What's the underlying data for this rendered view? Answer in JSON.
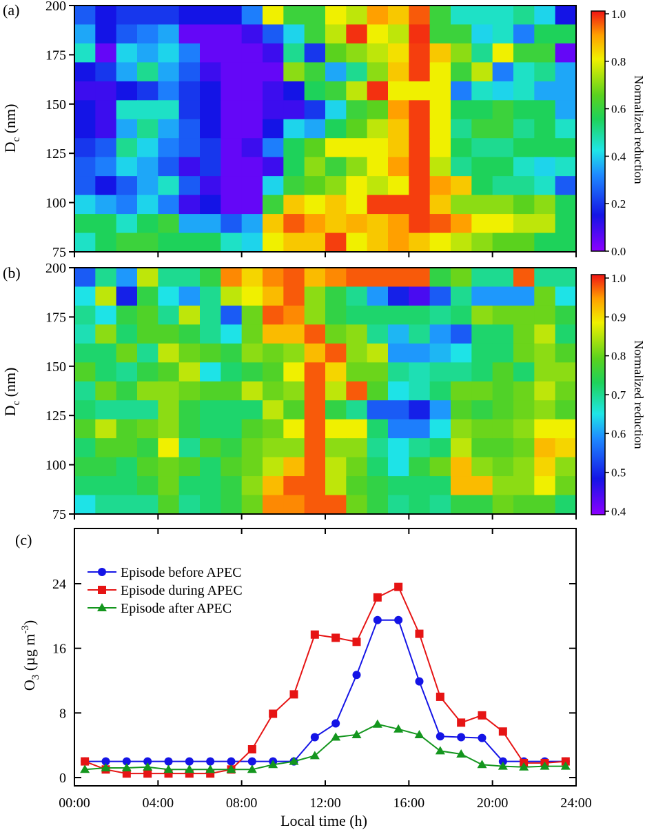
{
  "figure": {
    "panels": [
      {
        "label": "(a)",
        "ylabel_main": "D",
        "ylabel_sub": "c",
        "ylabel_unit": " (nm)",
        "colorbar_title": "Normalized reduction"
      },
      {
        "label": "(b)",
        "ylabel_main": "D",
        "ylabel_sub": "c",
        "ylabel_unit": " (nm)",
        "colorbar_title": "Normalized reduction"
      },
      {
        "label": "(c)",
        "ylabel_main": "O",
        "ylabel_sub": "3",
        "ylabel_unit": " (µg m",
        "ylabel_sup": "-3",
        "ylabel_close": ")",
        "xlabel": "Local time (h)"
      }
    ]
  },
  "chart_data": [
    {
      "type": "heatmap",
      "label": "(a)",
      "colormap": "rainbow (purple→blue→cyan→green→yellow→red)",
      "colorbar_range": [
        0.0,
        1.0
      ],
      "colorbar_ticks": [
        "0.0",
        "0.2",
        "0.4",
        "0.6",
        "0.8",
        "1.0"
      ],
      "colorbar_title": "Normalized reduction",
      "ylabel": "Dc (nm)",
      "y_ticks": [
        "75",
        "100",
        "125",
        "150",
        "175",
        "200"
      ],
      "ylim": [
        75,
        200
      ],
      "x_hours": [
        0,
        1,
        2,
        3,
        4,
        5,
        6,
        7,
        8,
        9,
        10,
        11,
        12,
        13,
        14,
        15,
        16,
        17,
        18,
        19,
        20,
        21,
        22,
        23
      ],
      "y_bins_nm": [
        80,
        90,
        100,
        110,
        120,
        130,
        140,
        150,
        160,
        170,
        180,
        190,
        200
      ],
      "values_top_to_bottom": [
        [
          0.25,
          0.15,
          0.2,
          0.2,
          0.2,
          0.15,
          0.15,
          0.15,
          0.3,
          0.8,
          0.6,
          0.6,
          0.8,
          0.75,
          0.9,
          0.85,
          0.95,
          0.6,
          0.45,
          0.45,
          0.45,
          0.5,
          0.4,
          0.15
        ],
        [
          0.35,
          0.15,
          0.25,
          0.3,
          0.35,
          0.05,
          0.05,
          0.05,
          0.1,
          0.25,
          0.4,
          0.6,
          0.75,
          0.98,
          0.8,
          0.75,
          0.98,
          0.6,
          0.6,
          0.4,
          0.45,
          0.3,
          0.55,
          0.55
        ],
        [
          0.45,
          0.05,
          0.4,
          0.35,
          0.4,
          0.3,
          0.05,
          0.05,
          0.05,
          0.1,
          0.5,
          0.2,
          0.65,
          0.7,
          0.75,
          0.82,
          0.97,
          0.85,
          0.7,
          0.5,
          0.8,
          0.6,
          0.6,
          0.05
        ],
        [
          0.15,
          0.2,
          0.35,
          0.5,
          0.35,
          0.25,
          0.1,
          0.05,
          0.05,
          0.05,
          0.7,
          0.6,
          0.35,
          0.5,
          0.7,
          0.85,
          0.97,
          0.8,
          0.6,
          0.75,
          0.3,
          0.45,
          0.5,
          0.35
        ],
        [
          0.1,
          0.1,
          0.15,
          0.2,
          0.3,
          0.2,
          0.15,
          0.05,
          0.05,
          0.1,
          0.15,
          0.55,
          0.6,
          0.75,
          0.98,
          0.8,
          0.8,
          0.8,
          0.3,
          0.45,
          0.4,
          0.45,
          0.35,
          0.35
        ],
        [
          0.15,
          0.1,
          0.45,
          0.45,
          0.45,
          0.2,
          0.15,
          0.05,
          0.05,
          0.1,
          0.1,
          0.2,
          0.4,
          0.6,
          0.65,
          0.9,
          0.97,
          0.8,
          0.55,
          0.55,
          0.6,
          0.55,
          0.55,
          0.35
        ],
        [
          0.15,
          0.1,
          0.35,
          0.5,
          0.35,
          0.25,
          0.15,
          0.05,
          0.05,
          0.15,
          0.4,
          0.35,
          0.55,
          0.65,
          0.75,
          0.85,
          0.97,
          0.8,
          0.5,
          0.6,
          0.6,
          0.5,
          0.55,
          0.45
        ],
        [
          0.2,
          0.25,
          0.5,
          0.4,
          0.3,
          0.25,
          0.2,
          0.05,
          0.1,
          0.3,
          0.55,
          0.65,
          0.8,
          0.8,
          0.8,
          0.85,
          0.97,
          0.8,
          0.55,
          0.5,
          0.5,
          0.55,
          0.55,
          0.55
        ],
        [
          0.25,
          0.3,
          0.4,
          0.35,
          0.25,
          0.1,
          0.2,
          0.05,
          0.05,
          0.1,
          0.55,
          0.7,
          0.6,
          0.7,
          0.8,
          0.9,
          0.97,
          0.75,
          0.5,
          0.55,
          0.55,
          0.45,
          0.4,
          0.45
        ],
        [
          0.25,
          0.15,
          0.25,
          0.35,
          0.45,
          0.25,
          0.1,
          0.05,
          0.05,
          0.4,
          0.6,
          0.65,
          0.7,
          0.8,
          0.75,
          0.8,
          0.97,
          0.9,
          0.85,
          0.55,
          0.5,
          0.5,
          0.45,
          0.25
        ],
        [
          0.4,
          0.35,
          0.3,
          0.4,
          0.3,
          0.1,
          0.15,
          0.05,
          0.05,
          0.6,
          0.85,
          0.8,
          0.85,
          0.8,
          0.97,
          0.97,
          0.97,
          0.85,
          0.7,
          0.7,
          0.7,
          0.65,
          0.7,
          0.55
        ],
        [
          0.55,
          0.55,
          0.45,
          0.55,
          0.6,
          0.35,
          0.35,
          0.25,
          0.35,
          0.85,
          0.95,
          0.9,
          0.85,
          0.88,
          0.85,
          0.9,
          0.97,
          0.95,
          0.9,
          0.8,
          0.8,
          0.75,
          0.75,
          0.55
        ],
        [
          0.45,
          0.55,
          0.6,
          0.6,
          0.55,
          0.55,
          0.55,
          0.45,
          0.4,
          0.8,
          0.85,
          0.85,
          0.97,
          0.8,
          0.85,
          0.9,
          0.85,
          0.8,
          0.75,
          0.7,
          0.65,
          0.65,
          0.55,
          0.55
        ]
      ]
    },
    {
      "type": "heatmap",
      "label": "(b)",
      "colormap": "rainbow (purple→blue→cyan→green→yellow→red)",
      "colorbar_range": [
        0.4,
        1.0
      ],
      "colorbar_ticks": [
        "0.4",
        "0.5",
        "0.6",
        "0.7",
        "0.8",
        "0.9",
        "1.0"
      ],
      "colorbar_title": "Normalized reduction",
      "ylabel": "Dc (nm)",
      "y_ticks": [
        "75",
        "100",
        "125",
        "150",
        "175",
        "200"
      ],
      "ylim": [
        75,
        200
      ],
      "x_hours": [
        0,
        1,
        2,
        3,
        4,
        5,
        6,
        7,
        8,
        9,
        10,
        11,
        12,
        13,
        14,
        15,
        16,
        17,
        18,
        19,
        20,
        21,
        22,
        23
      ],
      "y_bins_nm": [
        80,
        90,
        100,
        110,
        120,
        130,
        140,
        150,
        160,
        170,
        180,
        190,
        200
      ],
      "values_top_to_bottom": [
        [
          0.55,
          0.7,
          0.6,
          0.85,
          0.7,
          0.7,
          0.75,
          0.95,
          0.9,
          0.95,
          0.97,
          0.92,
          0.95,
          0.97,
          0.97,
          0.97,
          0.97,
          0.75,
          0.8,
          0.7,
          0.7,
          0.97,
          0.7,
          0.7
        ],
        [
          0.65,
          0.85,
          0.5,
          0.75,
          0.65,
          0.6,
          0.7,
          0.85,
          0.88,
          0.92,
          0.97,
          0.82,
          0.75,
          0.7,
          0.6,
          0.5,
          0.45,
          0.55,
          0.7,
          0.6,
          0.6,
          0.6,
          0.8,
          0.65
        ],
        [
          0.7,
          0.65,
          0.75,
          0.78,
          0.7,
          0.85,
          0.7,
          0.55,
          0.8,
          0.97,
          0.95,
          0.82,
          0.75,
          0.72,
          0.72,
          0.72,
          0.72,
          0.7,
          0.72,
          0.82,
          0.8,
          0.8,
          0.8,
          0.75
        ],
        [
          0.68,
          0.82,
          0.72,
          0.78,
          0.78,
          0.75,
          0.7,
          0.65,
          0.8,
          0.92,
          0.92,
          0.97,
          0.8,
          0.82,
          0.7,
          0.62,
          0.7,
          0.6,
          0.55,
          0.72,
          0.72,
          0.8,
          0.85,
          0.72
        ],
        [
          0.72,
          0.72,
          0.8,
          0.7,
          0.85,
          0.8,
          0.78,
          0.75,
          0.82,
          0.8,
          0.82,
          0.92,
          0.97,
          0.82,
          0.85,
          0.6,
          0.6,
          0.62,
          0.65,
          0.72,
          0.72,
          0.8,
          0.82,
          0.78
        ],
        [
          0.78,
          0.72,
          0.7,
          0.75,
          0.78,
          0.85,
          0.65,
          0.72,
          0.75,
          0.78,
          0.88,
          0.97,
          0.9,
          0.8,
          0.8,
          0.7,
          0.68,
          0.7,
          0.7,
          0.72,
          0.78,
          0.72,
          0.82,
          0.82
        ],
        [
          0.7,
          0.8,
          0.75,
          0.82,
          0.82,
          0.8,
          0.78,
          0.78,
          0.85,
          0.8,
          0.82,
          0.97,
          0.85,
          0.97,
          0.78,
          0.65,
          0.68,
          0.72,
          0.8,
          0.8,
          0.78,
          0.8,
          0.85,
          0.8
        ],
        [
          0.72,
          0.7,
          0.7,
          0.7,
          0.82,
          0.75,
          0.72,
          0.72,
          0.72,
          0.85,
          0.78,
          0.97,
          0.75,
          0.7,
          0.55,
          0.55,
          0.5,
          0.6,
          0.78,
          0.75,
          0.78,
          0.8,
          0.82,
          0.78
        ],
        [
          0.78,
          0.85,
          0.78,
          0.8,
          0.82,
          0.75,
          0.72,
          0.72,
          0.78,
          0.8,
          0.88,
          0.97,
          0.88,
          0.88,
          0.72,
          0.58,
          0.58,
          0.65,
          0.82,
          0.8,
          0.8,
          0.82,
          0.88,
          0.88
        ],
        [
          0.72,
          0.78,
          0.78,
          0.75,
          0.88,
          0.7,
          0.78,
          0.75,
          0.8,
          0.82,
          0.82,
          0.97,
          0.82,
          0.82,
          0.7,
          0.65,
          0.7,
          0.72,
          0.85,
          0.78,
          0.78,
          0.8,
          0.92,
          0.9
        ],
        [
          0.75,
          0.75,
          0.72,
          0.78,
          0.8,
          0.78,
          0.72,
          0.78,
          0.8,
          0.85,
          0.92,
          0.97,
          0.85,
          0.8,
          0.72,
          0.65,
          0.75,
          0.8,
          0.92,
          0.82,
          0.8,
          0.82,
          0.9,
          0.82
        ],
        [
          0.72,
          0.72,
          0.72,
          0.75,
          0.8,
          0.72,
          0.72,
          0.75,
          0.82,
          0.92,
          0.97,
          0.97,
          0.85,
          0.78,
          0.75,
          0.72,
          0.72,
          0.72,
          0.92,
          0.92,
          0.82,
          0.82,
          0.88,
          0.8
        ],
        [
          0.65,
          0.7,
          0.7,
          0.7,
          0.78,
          0.7,
          0.72,
          0.75,
          0.8,
          0.95,
          0.95,
          0.97,
          0.97,
          0.8,
          0.75,
          0.7,
          0.72,
          0.7,
          0.75,
          0.75,
          0.8,
          0.78,
          0.78,
          0.72
        ]
      ]
    },
    {
      "type": "line",
      "label": "(c)",
      "title": "",
      "xlabel": "Local time (h)",
      "ylabel": "O3 (µg m-3)",
      "xlim": [
        0,
        24
      ],
      "ylim": [
        0,
        32
      ],
      "x_ticks": [
        "00:00",
        "04:00",
        "08:00",
        "12:00",
        "16:00",
        "20:00",
        "24:00"
      ],
      "x_tick_hours": [
        0,
        4,
        8,
        12,
        16,
        20,
        24
      ],
      "y_ticks": [
        "0",
        "8",
        "16",
        "24"
      ],
      "y_tick_values": [
        0,
        8,
        16,
        24
      ],
      "x": [
        0.5,
        1.5,
        2.5,
        3.5,
        4.5,
        5.5,
        6.5,
        7.5,
        8.5,
        9.5,
        10.5,
        11.5,
        12.5,
        13.5,
        14.5,
        15.5,
        16.5,
        17.5,
        18.5,
        19.5,
        20.5,
        21.5,
        22.5,
        23.5
      ],
      "legend_position": "upper-left",
      "series": [
        {
          "name": " Episode before APEC",
          "color": "#1414e6",
          "marker": "circle",
          "values": [
            2.0,
            2.0,
            2.0,
            2.0,
            2.0,
            2.0,
            2.0,
            2.0,
            2.0,
            2.0,
            2.0,
            5.0,
            6.7,
            12.7,
            19.5,
            19.5,
            11.9,
            5.1,
            5.0,
            4.9,
            2.0,
            2.0,
            2.0,
            2.0
          ]
        },
        {
          "name": "Episode during APEC",
          "color": "#e61414",
          "marker": "square",
          "values": [
            2.0,
            1.0,
            0.5,
            0.5,
            0.5,
            0.5,
            0.5,
            1.0,
            3.5,
            7.9,
            10.3,
            17.7,
            17.3,
            16.8,
            22.3,
            23.6,
            17.8,
            10.0,
            6.8,
            7.7,
            5.7,
            1.8,
            1.8,
            2.0
          ]
        },
        {
          "name": "Episode after APEC",
          "color": "#14961e",
          "marker": "triangle",
          "values": [
            1.0,
            1.2,
            1.2,
            1.3,
            1.0,
            1.0,
            1.0,
            1.0,
            1.0,
            1.6,
            2.0,
            2.7,
            5.0,
            5.3,
            6.6,
            6.0,
            5.3,
            3.3,
            2.9,
            1.6,
            1.4,
            1.3,
            1.4,
            1.4
          ]
        }
      ]
    }
  ]
}
